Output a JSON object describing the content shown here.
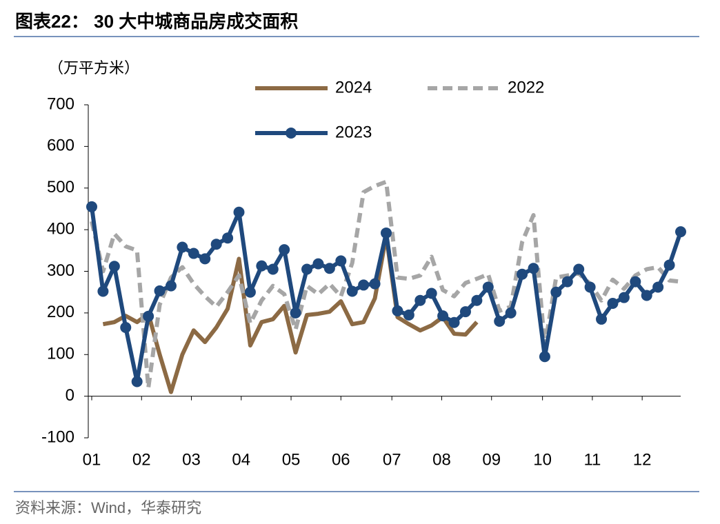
{
  "chart_data": {
    "type": "line",
    "title": "图表22： 30 大中城商品房成交面积",
    "y_label": "（万平方米）",
    "source": "资料来源：Wind，华泰研究",
    "x": [
      0,
      1,
      2,
      3,
      4,
      5,
      6,
      7,
      8,
      9,
      10,
      11,
      12,
      13,
      14,
      15,
      16,
      17,
      18,
      19,
      20,
      21,
      22,
      23,
      24,
      25,
      26,
      27,
      28,
      29,
      30,
      31,
      32,
      33,
      34,
      35,
      36,
      37,
      38,
      39,
      40,
      41,
      42,
      43,
      44,
      45,
      46,
      47,
      48,
      49,
      50,
      51,
      52
    ],
    "xlim": [
      0,
      52
    ],
    "xticks": [
      {
        "value": 0,
        "label": "01"
      },
      {
        "value": 4.4,
        "label": "02"
      },
      {
        "value": 8.8,
        "label": "03"
      },
      {
        "value": 13.2,
        "label": "04"
      },
      {
        "value": 17.6,
        "label": "05"
      },
      {
        "value": 22,
        "label": "06"
      },
      {
        "value": 26.5,
        "label": "07"
      },
      {
        "value": 30.9,
        "label": "08"
      },
      {
        "value": 35.3,
        "label": "09"
      },
      {
        "value": 39.8,
        "label": "10"
      },
      {
        "value": 44.2,
        "label": "11"
      },
      {
        "value": 48.6,
        "label": "12"
      }
    ],
    "ylim": [
      -100,
      700
    ],
    "yticks": [
      -100,
      0,
      100,
      200,
      300,
      400,
      500,
      600,
      700
    ],
    "series": [
      {
        "name": "2024",
        "color": "#8c6a44",
        "style": "solid",
        "marker": false,
        "values": [
          null,
          173,
          178,
          193,
          178,
          198,
          100,
          10,
          100,
          158,
          130,
          165,
          210,
          330,
          122,
          178,
          185,
          217,
          105,
          195,
          198,
          203,
          228,
          173,
          178,
          235,
          385,
          190,
          173,
          158,
          170,
          190,
          150,
          148,
          178,
          null,
          null,
          null,
          null,
          null,
          null,
          null,
          null,
          null,
          null,
          null,
          null,
          null,
          null,
          null,
          null,
          null,
          null
        ]
      },
      {
        "name": "2022",
        "color": "#a6a6a6",
        "style": "dashed",
        "marker": false,
        "values": [
          420,
          300,
          390,
          360,
          350,
          20,
          220,
          285,
          310,
          270,
          240,
          215,
          250,
          290,
          175,
          230,
          265,
          245,
          160,
          265,
          245,
          270,
          240,
          320,
          490,
          505,
          515,
          285,
          282,
          290,
          335,
          255,
          240,
          272,
          282,
          293,
          205,
          215,
          370,
          435,
          120,
          285,
          290,
          295,
          270,
          230,
          280,
          258,
          290,
          305,
          310,
          278,
          275
        ]
      },
      {
        "name": "2023",
        "color": "#1f497d",
        "style": "solid",
        "marker": true,
        "values": [
          455,
          252,
          312,
          165,
          35,
          192,
          253,
          265,
          358,
          343,
          330,
          365,
          380,
          442,
          250,
          313,
          305,
          352,
          200,
          305,
          318,
          307,
          325,
          252,
          267,
          270,
          392,
          205,
          195,
          230,
          247,
          193,
          177,
          203,
          230,
          262,
          180,
          200,
          293,
          307,
          95,
          250,
          275,
          305,
          262,
          185,
          223,
          237,
          275,
          242,
          262,
          315,
          395
        ]
      }
    ]
  }
}
